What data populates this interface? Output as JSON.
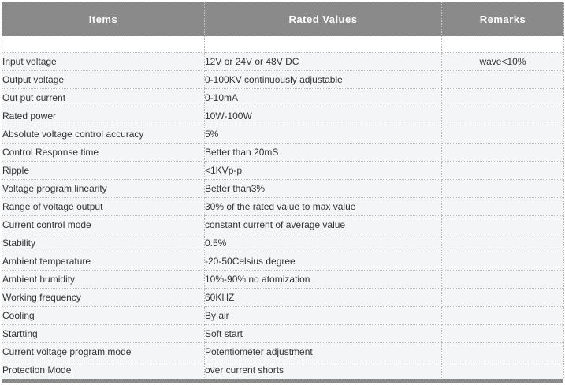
{
  "colors": {
    "header_bg": "#8a8a8a",
    "header_text": "#ffffff",
    "row_bg": "#f3f5f7",
    "spacer_bg": "#ffffff",
    "border_dotted": "#b9b9b9",
    "body_text": "#333333",
    "footer_bg": "#8a8a8a"
  },
  "table": {
    "columns": [
      {
        "label": "Items"
      },
      {
        "label": "Rated Values"
      },
      {
        "label": "Remarks"
      }
    ],
    "rows": [
      {
        "item": "Input voltage",
        "value": "12V or 24V or 48V DC",
        "remark": "wave<10%"
      },
      {
        "item": "Output voltage",
        "value": "0-100KV continuously adjustable",
        "remark": ""
      },
      {
        "item": "Out put current",
        "value": "0-10mA",
        "remark": ""
      },
      {
        "item": "Rated power",
        "value": "10W-100W",
        "remark": ""
      },
      {
        "item": "Absolute voltage control accuracy",
        "value": "5%",
        "remark": ""
      },
      {
        "item": "Control Response time",
        "value": "Better than 20mS",
        "remark": ""
      },
      {
        "item": "Ripple",
        "value": "<1KVp-p",
        "remark": ""
      },
      {
        "item": "Voltage program linearity",
        "value": "Better than3%",
        "remark": ""
      },
      {
        "item": "Range of voltage output",
        "value": "30% of the rated value to max value",
        "remark": ""
      },
      {
        "item": "Current control mode",
        "value": "constant current of average value",
        "remark": ""
      },
      {
        "item": "Stability",
        "value": "0.5%",
        "remark": ""
      },
      {
        "item": "Ambient temperature",
        "value": "-20-50Celsius degree",
        "remark": ""
      },
      {
        "item": "Ambient humidity",
        "value": "10%-90% no atomization",
        "remark": ""
      },
      {
        "item": "Working frequency",
        "value": "60KHZ",
        "remark": ""
      },
      {
        "item": "Cooling",
        "value": "By air",
        "remark": ""
      },
      {
        "item": "Startting",
        "value": "Soft start",
        "remark": ""
      },
      {
        "item": "Current voltage program mode",
        "value": "Potentiometer adjustment",
        "remark": ""
      },
      {
        "item": "Protection Mode",
        "value": "over current shorts",
        "remark": ""
      }
    ]
  }
}
